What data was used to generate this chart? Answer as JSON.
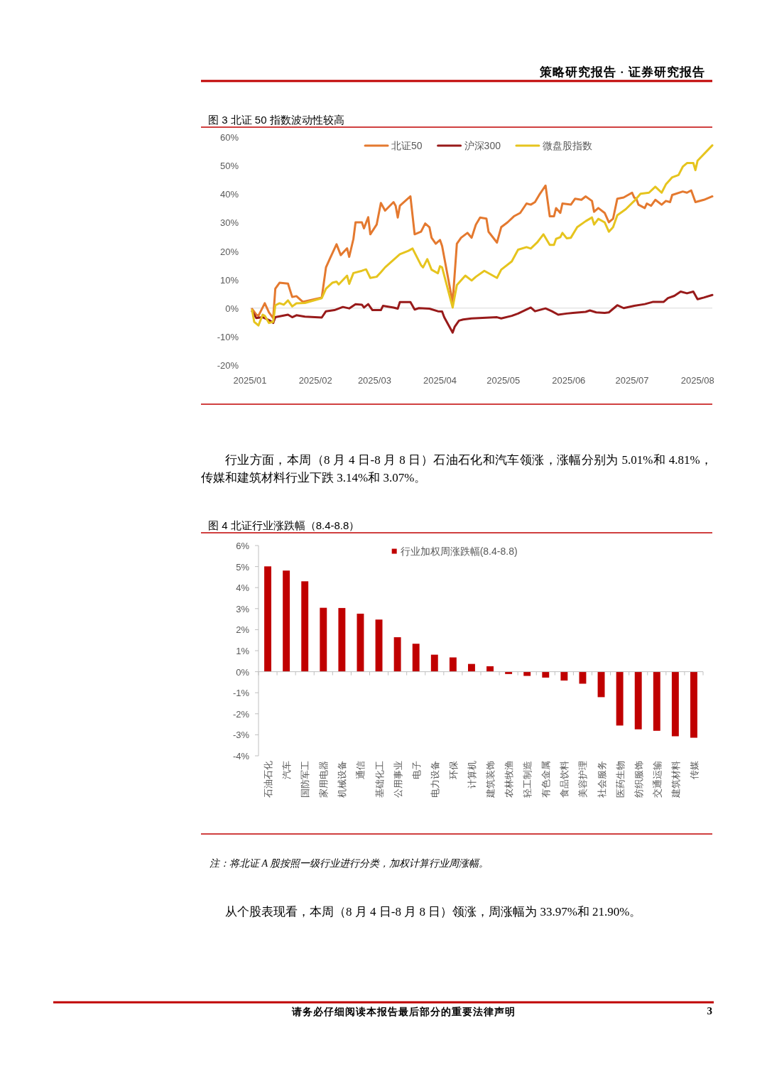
{
  "chart_data": [
    {
      "type": "line",
      "title": "图 3 北证 50 指数波动性较高",
      "xlim": [
        "2025-01-01",
        "2025-08-08"
      ],
      "xticks": [
        {
          "value": "2025-01-01",
          "label": "2025/01"
        },
        {
          "value": "2025-02-01",
          "label": "2025/02"
        },
        {
          "value": "2025-03-01",
          "label": "2025/03"
        },
        {
          "value": "2025-04-01",
          "label": "2025/04"
        },
        {
          "value": "2025-05-01",
          "label": "2025/05"
        },
        {
          "value": "2025-06-01",
          "label": "2025/06"
        },
        {
          "value": "2025-07-01",
          "label": "2025/07"
        },
        {
          "value": "2025-08-01",
          "label": "2025/08"
        }
      ],
      "ylim": [
        -20,
        60
      ],
      "yticks": [
        {
          "value": -20,
          "label": "-20%"
        },
        {
          "value": -10,
          "label": "-10%"
        },
        {
          "value": 0,
          "label": "0%"
        },
        {
          "value": 10,
          "label": "10%"
        },
        {
          "value": 20,
          "label": "20%"
        },
        {
          "value": 30,
          "label": "30%"
        },
        {
          "value": 40,
          "label": "40%"
        },
        {
          "value": 50,
          "label": "50%"
        },
        {
          "value": 60,
          "label": "60%"
        }
      ],
      "legend": "top",
      "series": [
        {
          "name": "北证50",
          "color": "#e4792f",
          "x": [
            "2025-01-02",
            "2025-01-04",
            "2025-01-05",
            "2025-01-08",
            "2025-01-10",
            "2025-01-12",
            "2025-01-13",
            "2025-01-15",
            "2025-01-19",
            "2025-01-21",
            "2025-01-23",
            "2025-01-26",
            "2025-02-04",
            "2025-02-06",
            "2025-02-08",
            "2025-02-11",
            "2025-02-13",
            "2025-02-16",
            "2025-02-17",
            "2025-02-19",
            "2025-02-20",
            "2025-02-23",
            "2025-02-24",
            "2025-02-26",
            "2025-02-27",
            "2025-03-02",
            "2025-03-04",
            "2025-03-06",
            "2025-03-10",
            "2025-03-11",
            "2025-03-12",
            "2025-03-13",
            "2025-03-18",
            "2025-03-20",
            "2025-03-23",
            "2025-03-25",
            "2025-03-27",
            "2025-03-28",
            "2025-03-30",
            "2025-04-01",
            "2025-04-02",
            "2025-04-07",
            "2025-04-09",
            "2025-04-11",
            "2025-04-14",
            "2025-04-16",
            "2025-04-18",
            "2025-04-20",
            "2025-04-23",
            "2025-04-24",
            "2025-04-28",
            "2025-04-30",
            "2025-05-03",
            "2025-05-06",
            "2025-05-09",
            "2025-05-12",
            "2025-05-14",
            "2025-05-16",
            "2025-05-18",
            "2025-05-21",
            "2025-05-23",
            "2025-05-25",
            "2025-05-26",
            "2025-05-28",
            "2025-05-29",
            "2025-06-02",
            "2025-06-04",
            "2025-06-07",
            "2025-06-09",
            "2025-06-12",
            "2025-06-13",
            "2025-06-15",
            "2025-06-18",
            "2025-06-20",
            "2025-06-22",
            "2025-06-24",
            "2025-06-27",
            "2025-07-01",
            "2025-07-02",
            "2025-07-03",
            "2025-07-04",
            "2025-07-07",
            "2025-07-08",
            "2025-07-10",
            "2025-07-12",
            "2025-07-15",
            "2025-07-17",
            "2025-07-19",
            "2025-07-20",
            "2025-07-25",
            "2025-07-27",
            "2025-07-29",
            "2025-07-31",
            "2025-08-04",
            "2025-08-08"
          ],
          "values": [
            -0.3,
            -2.3,
            -2.7,
            1.7,
            -1.5,
            -3.5,
            6.8,
            8.9,
            8.6,
            3.9,
            4.2,
            2.2,
            3.7,
            14.3,
            17.6,
            22.4,
            18.6,
            21,
            18,
            24.3,
            30.1,
            30.1,
            28,
            31.9,
            25.9,
            29.3,
            36.9,
            34.2,
            37.2,
            35.9,
            31.8,
            35.9,
            39.2,
            25.9,
            26.8,
            29.7,
            28.4,
            24.7,
            22.6,
            23.9,
            21.8,
            2,
            22.6,
            24.7,
            26.4,
            24.7,
            29.3,
            31.8,
            31.4,
            26.8,
            23,
            28.4,
            30.1,
            32.2,
            33.4,
            36.7,
            36.3,
            37.2,
            39.7,
            43,
            32.2,
            32.2,
            35.1,
            33.4,
            36.7,
            36.3,
            38.4,
            38,
            39.2,
            37.6,
            33.8,
            35.1,
            33.4,
            30.1,
            31.4,
            38.4,
            38.8,
            40.5,
            38.8,
            38.4,
            36.3,
            35.1,
            36.7,
            35.9,
            38,
            36.3,
            37.6,
            37.2,
            39.7,
            40.9,
            40.5,
            41.3,
            37.2,
            38,
            39.2
          ]
        },
        {
          "name": "沪深300",
          "color": "#981a1a",
          "x": [
            "2025-01-02",
            "2025-01-04",
            "2025-01-07",
            "2025-01-10",
            "2025-01-12",
            "2025-01-13",
            "2025-01-19",
            "2025-01-21",
            "2025-01-23",
            "2025-01-27",
            "2025-02-04",
            "2025-02-06",
            "2025-02-10",
            "2025-02-14",
            "2025-02-17",
            "2025-02-20",
            "2025-02-23",
            "2025-02-24",
            "2025-02-26",
            "2025-02-28",
            "2025-03-04",
            "2025-03-05",
            "2025-03-10",
            "2025-03-12",
            "2025-03-13",
            "2025-03-18",
            "2025-03-20",
            "2025-03-22",
            "2025-03-27",
            "2025-03-31",
            "2025-04-02",
            "2025-04-03",
            "2025-04-07",
            "2025-04-08",
            "2025-04-10",
            "2025-04-12",
            "2025-04-16",
            "2025-04-28",
            "2025-04-30",
            "2025-05-05",
            "2025-05-08",
            "2025-05-14",
            "2025-05-16",
            "2025-05-21",
            "2025-05-24",
            "2025-05-27",
            "2025-05-31",
            "2025-06-03",
            "2025-06-09",
            "2025-06-11",
            "2025-06-14",
            "2025-06-18",
            "2025-06-20",
            "2025-06-24",
            "2025-06-27",
            "2025-07-02",
            "2025-07-07",
            "2025-07-11",
            "2025-07-16",
            "2025-07-18",
            "2025-07-21",
            "2025-07-24",
            "2025-07-27",
            "2025-07-30",
            "2025-08-01",
            "2025-08-04",
            "2025-08-08"
          ],
          "values": [
            -1.1,
            -3.5,
            -3.2,
            -4.2,
            -5.2,
            -3.2,
            -2.3,
            -3.2,
            -2.5,
            -3,
            -3.3,
            -1.1,
            -0.7,
            0.4,
            -0.1,
            1.4,
            1.2,
            0.2,
            1.4,
            -0.7,
            -0.7,
            0.8,
            0.2,
            -0.2,
            2.1,
            2.1,
            -0.5,
            0,
            -0.2,
            -1.1,
            -1.2,
            -3.2,
            -8.6,
            -6.5,
            -4.4,
            -4,
            -3.6,
            -3.2,
            -3.6,
            -2.7,
            -1.9,
            0.2,
            -1.1,
            -0.1,
            -1.1,
            -2.3,
            -1.9,
            -1.7,
            -1.3,
            -0.8,
            -1.5,
            -1.7,
            -1.5,
            1,
            0,
            0.8,
            1.4,
            2.2,
            2.2,
            3.5,
            4.3,
            5.8,
            5.2,
            5.8,
            3.1,
            3.7,
            4.6
          ]
        },
        {
          "name": "微盘股指数",
          "color": "#e6c41e",
          "x": [
            "2025-01-02",
            "2025-01-03",
            "2025-01-05",
            "2025-01-07",
            "2025-01-08",
            "2025-01-10",
            "2025-01-12",
            "2025-01-13",
            "2025-01-15",
            "2025-01-17",
            "2025-01-19",
            "2025-01-21",
            "2025-01-23",
            "2025-01-27",
            "2025-02-04",
            "2025-02-06",
            "2025-02-09",
            "2025-02-11",
            "2025-02-12",
            "2025-02-16",
            "2025-02-17",
            "2025-02-19",
            "2025-02-23",
            "2025-02-25",
            "2025-02-27",
            "2025-03-02",
            "2025-03-04",
            "2025-03-06",
            "2025-03-11",
            "2025-03-13",
            "2025-03-17",
            "2025-03-19",
            "2025-03-23",
            "2025-03-24",
            "2025-03-26",
            "2025-03-28",
            "2025-03-31",
            "2025-04-01",
            "2025-04-02",
            "2025-04-07",
            "2025-04-09",
            "2025-04-13",
            "2025-04-16",
            "2025-04-18",
            "2025-04-22",
            "2025-04-28",
            "2025-04-30",
            "2025-05-05",
            "2025-05-08",
            "2025-05-12",
            "2025-05-14",
            "2025-05-17",
            "2025-05-20",
            "2025-05-23",
            "2025-05-25",
            "2025-05-26",
            "2025-05-28",
            "2025-05-29",
            "2025-05-31",
            "2025-06-02",
            "2025-06-05",
            "2025-06-09",
            "2025-06-12",
            "2025-06-13",
            "2025-06-15",
            "2025-06-18",
            "2025-06-20",
            "2025-06-22",
            "2025-06-24",
            "2025-06-28",
            "2025-07-02",
            "2025-07-05",
            "2025-07-09",
            "2025-07-12",
            "2025-07-15",
            "2025-07-17",
            "2025-07-20",
            "2025-07-23",
            "2025-07-25",
            "2025-07-27",
            "2025-07-30",
            "2025-07-31",
            "2025-08-01",
            "2025-08-08"
          ],
          "values": [
            -0.7,
            -4.8,
            -6.1,
            -2.3,
            -2.7,
            -5.2,
            -4.8,
            1,
            1.7,
            1.2,
            2.7,
            0.6,
            1.7,
            1.8,
            3.5,
            6.8,
            8.9,
            9.3,
            8.3,
            11.4,
            8.5,
            12.3,
            13.1,
            13.6,
            10.6,
            11,
            12.6,
            14.3,
            17.6,
            18.9,
            20.1,
            20.9,
            15.1,
            14.3,
            17.2,
            13.5,
            12.2,
            14.7,
            14.3,
            0.2,
            8.1,
            11.4,
            9.7,
            11,
            13.1,
            10.6,
            13.5,
            16.4,
            20.5,
            21.4,
            20.9,
            23,
            25.9,
            22.2,
            22.2,
            24.3,
            24.9,
            26.4,
            24.5,
            24.7,
            28.4,
            30.5,
            31.8,
            29.3,
            31.3,
            30.1,
            26.8,
            28.4,
            32.6,
            34.7,
            37.6,
            40.1,
            40.5,
            42.6,
            40.5,
            43.4,
            45.9,
            46.7,
            49.6,
            50.9,
            50.9,
            48.4,
            51.7,
            57.1
          ]
        }
      ],
      "annotations": [
        "策略研究报告 · 证券研究报告",
        "行业方面，本周（8 月 4 日-8 月 8 日）石油石化和汽车领涨，涨幅分别为 5.01%和 4.81%，传媒和建筑材料行业下跌 3.14%和 3.07%。"
      ]
    },
    {
      "type": "bar",
      "title": "图 4 北证行业涨跌幅（8.4-8.8）",
      "categories": [
        "石油石化",
        "汽车",
        "国防军工",
        "家用电器",
        "机械设备",
        "通信",
        "基础化工",
        "公用事业",
        "电子",
        "电力设备",
        "环保",
        "计算机",
        "建筑装饰",
        "农林牧渔",
        "轻工制造",
        "有色金属",
        "食品饮料",
        "美容护理",
        "社会服务",
        "医药生物",
        "纺织服饰",
        "交通运输",
        "建筑材料",
        "传媒"
      ],
      "series": [
        {
          "name": "行业加权周涨跌幅(8.4-8.8)",
          "color": "#c00000",
          "values": [
            5.01,
            4.81,
            4.3,
            3.04,
            3.03,
            2.76,
            2.48,
            1.64,
            1.33,
            0.81,
            0.68,
            0.37,
            0.26,
            -0.11,
            -0.2,
            -0.28,
            -0.42,
            -0.57,
            -1.21,
            -2.56,
            -2.74,
            -2.81,
            -3.07,
            -3.14
          ]
        }
      ],
      "ylim": [
        -4,
        6
      ],
      "yticks": [
        {
          "value": -4,
          "label": "-4%"
        },
        {
          "value": -3,
          "label": "-3%"
        },
        {
          "value": -2,
          "label": "-2%"
        },
        {
          "value": -1,
          "label": "-1%"
        },
        {
          "value": 0,
          "label": "0%"
        },
        {
          "value": 1,
          "label": "1%"
        },
        {
          "value": 2,
          "label": "2%"
        },
        {
          "value": 3,
          "label": "3%"
        },
        {
          "value": 4,
          "label": "4%"
        },
        {
          "value": 5,
          "label": "5%"
        },
        {
          "value": 6,
          "label": "6%"
        }
      ],
      "legend": "top",
      "annotations": [
        "注：将北证 A 股按照一级行业进行分类，加权计算行业周涨幅。",
        "从个股表现看，本周（8 月 4 日-8 月 8 日）领涨，周涨幅为 33.97%和 21.90%。",
        "请务必仔细阅读本报告最后部分的重要法律声明",
        "3"
      ]
    }
  ]
}
